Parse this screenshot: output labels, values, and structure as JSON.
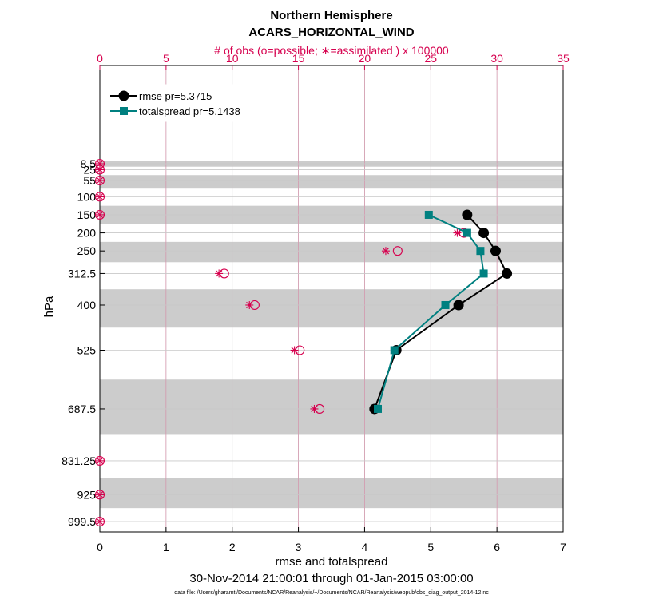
{
  "chart_data": {
    "type": "line",
    "title": "Northern Hemisphere",
    "subtitle": "ACARS_HORIZONTAL_WIND",
    "top_axis_label": "# of obs (o=possible; ∗=assimilated ) x 100000",
    "xlabel": "rmse and totalspread",
    "ylabel": "hPa",
    "date_range": "30-Nov-2014 21:00:01 through 01-Jan-2015 03:00:00",
    "footnote": "data file: /Users/gharamti/Documents/NCAR/Reanalysis/~/Documents/NCAR/Reanalysis/webpub/obs_diag_output_2014-12.nc",
    "xlim": [
      0,
      7
    ],
    "xticks": [
      "0",
      "1",
      "2",
      "3",
      "4",
      "5",
      "6",
      "7"
    ],
    "top_xlim": [
      0,
      35
    ],
    "top_xticks": [
      "0",
      "5",
      "10",
      "15",
      "20",
      "25",
      "30",
      "35"
    ],
    "y_levels": [
      "8.5",
      "25",
      "55",
      "100",
      "150",
      "200",
      "250",
      "312.5",
      "400",
      "525",
      "687.5",
      "831.25",
      "925",
      "999.5"
    ],
    "grid": true,
    "legend_position": "top-left",
    "series": [
      {
        "name": "rmse pr=5.3715",
        "color": "#000000",
        "marker": "circle",
        "points": [
          {
            "level": "150",
            "value": 5.55
          },
          {
            "level": "200",
            "value": 5.8
          },
          {
            "level": "250",
            "value": 5.98
          },
          {
            "level": "312.5",
            "value": 6.15
          },
          {
            "level": "400",
            "value": 5.42
          },
          {
            "level": "525",
            "value": 4.48
          },
          {
            "level": "687.5",
            "value": 4.15
          }
        ]
      },
      {
        "name": "totalspread pr=5.1438",
        "color": "#008080",
        "marker": "square",
        "points": [
          {
            "level": "150",
            "value": 4.97
          },
          {
            "level": "200",
            "value": 5.55
          },
          {
            "level": "250",
            "value": 5.75
          },
          {
            "level": "312.5",
            "value": 5.8
          },
          {
            "level": "400",
            "value": 5.22
          },
          {
            "level": "525",
            "value": 4.45
          },
          {
            "level": "687.5",
            "value": 4.2
          }
        ]
      }
    ],
    "obs_possible": [
      {
        "level": "8.5",
        "value": 0
      },
      {
        "level": "25",
        "value": 0
      },
      {
        "level": "55",
        "value": 0
      },
      {
        "level": "100",
        "value": 0
      },
      {
        "level": "150",
        "value": 0
      },
      {
        "level": "200",
        "value": 27.5
      },
      {
        "level": "250",
        "value": 22.5
      },
      {
        "level": "312.5",
        "value": 9.4
      },
      {
        "level": "400",
        "value": 11.7
      },
      {
        "level": "525",
        "value": 15.1
      },
      {
        "level": "687.5",
        "value": 16.6
      },
      {
        "level": "831.25",
        "value": 0
      },
      {
        "level": "925",
        "value": 0
      },
      {
        "level": "999.5",
        "value": 0
      }
    ],
    "obs_assimilated": [
      {
        "level": "8.5",
        "value": 0
      },
      {
        "level": "25",
        "value": 0
      },
      {
        "level": "55",
        "value": 0
      },
      {
        "level": "100",
        "value": 0
      },
      {
        "level": "150",
        "value": 0
      },
      {
        "level": "200",
        "value": 27.0
      },
      {
        "level": "250",
        "value": 21.6
      },
      {
        "level": "312.5",
        "value": 9.0
      },
      {
        "level": "400",
        "value": 11.3
      },
      {
        "level": "525",
        "value": 14.7
      },
      {
        "level": "687.5",
        "value": 16.2
      },
      {
        "level": "831.25",
        "value": 0
      },
      {
        "level": "925",
        "value": 0
      },
      {
        "level": "999.5",
        "value": 0
      }
    ],
    "colors": {
      "obs": "#d6004e",
      "band": "#cccccc"
    }
  }
}
